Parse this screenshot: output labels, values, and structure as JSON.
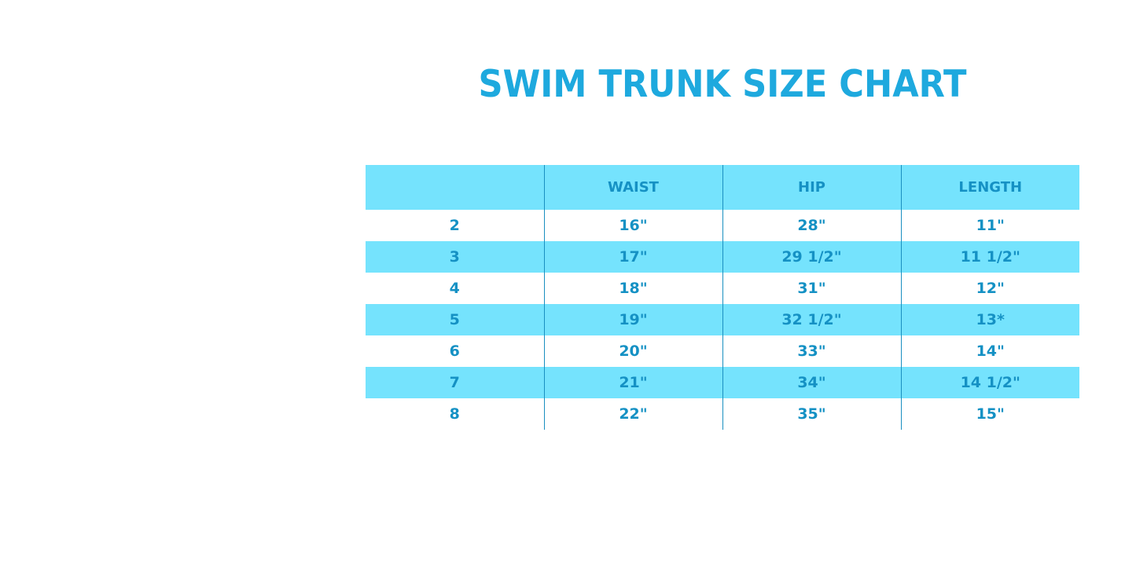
{
  "title": "SWIM TRUNK SIZE CHART",
  "table": {
    "headers": [
      "",
      "WAIST",
      "HIP",
      "LENGTH"
    ],
    "rows": [
      [
        "2",
        "16\"",
        "28\"",
        "11\""
      ],
      [
        "3",
        "17\"",
        "29 1/2\"",
        "11 1/2\""
      ],
      [
        "4",
        "18\"",
        "31\"",
        "12\""
      ],
      [
        "5",
        "19\"",
        "32 1/2\"",
        "13*"
      ],
      [
        "6",
        "20\"",
        "33\"",
        "14\""
      ],
      [
        "7",
        "21\"",
        "34\"",
        "14 1/2\""
      ],
      [
        "8",
        "22\"",
        "35\"",
        "15\""
      ]
    ]
  },
  "colors": {
    "title": "#1ea9de",
    "stripe": "#75e3fd",
    "text": "#1591c4"
  }
}
